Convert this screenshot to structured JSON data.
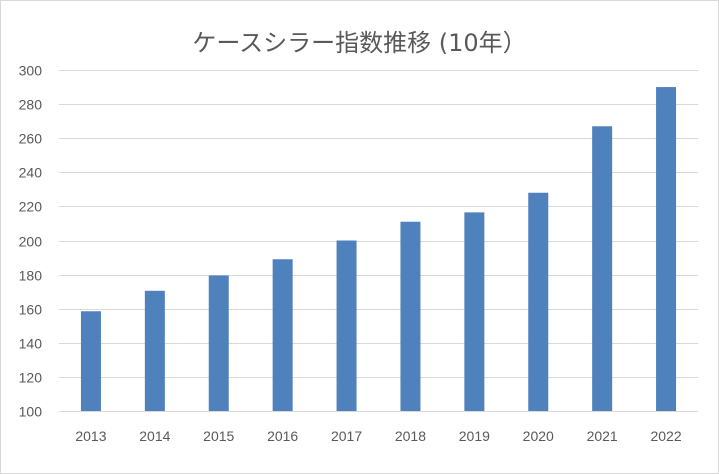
{
  "chart_data": {
    "type": "bar",
    "title": "ケースシラー指数推移 (10年）",
    "categories": [
      "2013",
      "2014",
      "2015",
      "2016",
      "2017",
      "2018",
      "2019",
      "2020",
      "2021",
      "2022"
    ],
    "series": [
      {
        "values": [
          158.5,
          170.5,
          179.5,
          189,
          200,
          211,
          216.5,
          228,
          267,
          290
        ]
      }
    ],
    "ylim": [
      100,
      300
    ],
    "yticks": [
      100,
      120,
      140,
      160,
      180,
      200,
      220,
      240,
      260,
      280,
      300
    ],
    "grid": true,
    "legend": "none",
    "xlabel": "",
    "ylabel": "",
    "colors": {
      "bar": "#4f81bd",
      "grid": "#d9d9d9",
      "text": "#595959",
      "border": "#d9d9d9"
    }
  }
}
